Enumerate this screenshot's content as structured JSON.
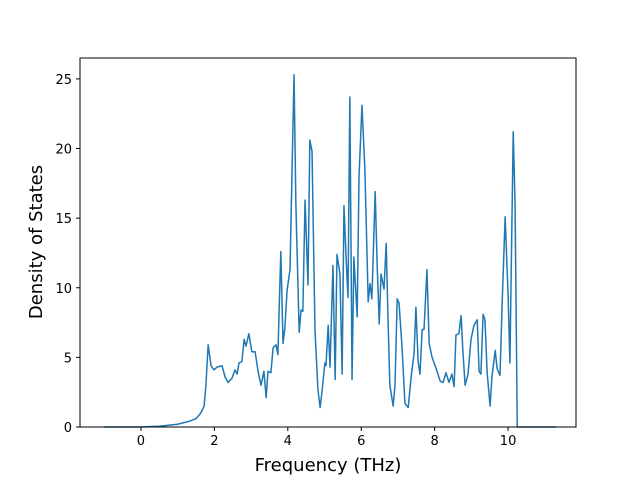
{
  "chart_data": {
    "type": "line",
    "x_label": "Frequency (THz)",
    "y_label": "Density of States",
    "xlim": [
      -1.66,
      11.85
    ],
    "ylim": [
      0,
      26.5
    ],
    "xticks": [
      0,
      2,
      4,
      6,
      8,
      10
    ],
    "yticks": [
      0,
      5,
      10,
      15,
      20,
      25
    ],
    "series": [
      {
        "color": "#1f77b4",
        "x": [
          -1,
          -0.5,
          0,
          0.5,
          1,
          1.3,
          1.5,
          1.6,
          1.65,
          1.72,
          1.77,
          1.83,
          1.91,
          1.99,
          2.07,
          2.21,
          2.29,
          2.37,
          2.48,
          2.56,
          2.62,
          2.67,
          2.75,
          2.81,
          2.86,
          2.94,
          3.02,
          3.11,
          3.19,
          3.27,
          3.35,
          3.41,
          3.46,
          3.54,
          3.6,
          3.68,
          3.73,
          3.81,
          3.87,
          3.92,
          3.98,
          4.06,
          4.17,
          4.22,
          4.31,
          4.36,
          4.41,
          4.47,
          4.55,
          4.6,
          4.66,
          4.74,
          4.82,
          4.88,
          4.93,
          5.01,
          5.04,
          5.1,
          5.15,
          5.23,
          5.29,
          5.34,
          5.42,
          5.48,
          5.53,
          5.59,
          5.64,
          5.69,
          5.75,
          5.8,
          5.89,
          5.94,
          6.02,
          6.1,
          6.19,
          6.24,
          6.29,
          6.38,
          6.43,
          6.49,
          6.54,
          6.62,
          6.68,
          6.73,
          6.78,
          6.87,
          6.92,
          6.98,
          7.03,
          7.11,
          7.19,
          7.28,
          7.36,
          7.44,
          7.49,
          7.55,
          7.6,
          7.66,
          7.71,
          7.79,
          7.85,
          7.93,
          8.04,
          8.15,
          8.23,
          8.31,
          8.39,
          8.47,
          8.53,
          8.58,
          8.66,
          8.72,
          8.77,
          8.83,
          8.91,
          8.99,
          9.07,
          9.16,
          9.21,
          9.26,
          9.32,
          9.37,
          9.43,
          9.51,
          9.56,
          9.65,
          9.7,
          9.78,
          9.84,
          9.92,
          10.0,
          10.05,
          10.14,
          10.19,
          10.25,
          10.33,
          11.3
        ],
        "values": [
          0,
          0,
          0,
          0.05,
          0.2,
          0.4,
          0.6,
          0.9,
          1.1,
          1.5,
          3,
          5.9,
          4.4,
          4.1,
          4.3,
          4.4,
          3.6,
          3.2,
          3.5,
          4.1,
          3.8,
          4.6,
          4.7,
          6.3,
          5.8,
          6.7,
          5.4,
          5.4,
          4,
          3,
          4,
          2.1,
          4,
          3.9,
          5.7,
          5.9,
          5.2,
          12.6,
          6,
          7.1,
          9.8,
          11.3,
          25.3,
          16,
          6.8,
          8.4,
          8.3,
          16.3,
          10.2,
          20.6,
          19.8,
          7,
          2.7,
          1.4,
          2.5,
          4.6,
          4.4,
          7.3,
          4.3,
          11.6,
          3.4,
          12.4,
          11,
          3.8,
          15.9,
          12,
          9.3,
          23.7,
          3.4,
          12.2,
          7.9,
          18,
          23.1,
          18.5,
          9,
          10.3,
          9.2,
          16.9,
          12,
          7.4,
          11,
          9.9,
          13.2,
          7.7,
          3,
          1.5,
          3,
          9.2,
          8.9,
          5.8,
          1.7,
          1.4,
          3.6,
          5.3,
          8.6,
          4.7,
          3.8,
          7,
          7,
          11.3,
          6,
          5,
          4.2,
          3.3,
          3.2,
          3.9,
          3.2,
          3.8,
          2.9,
          6.6,
          6.7,
          8,
          5.4,
          3,
          3.8,
          6.3,
          7.3,
          7.7,
          4,
          3.8,
          8.1,
          7.7,
          3.9,
          1.5,
          3.6,
          5.5,
          4.2,
          3.7,
          9,
          15.1,
          9.5,
          4.6,
          21.2,
          16,
          0,
          0,
          0
        ]
      }
    ]
  }
}
